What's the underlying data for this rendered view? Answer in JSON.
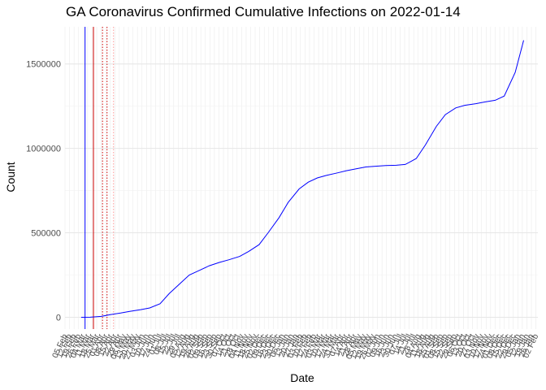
{
  "chart_data": {
    "type": "line",
    "title": "GA Coronavirus Confirmed Cumulative Infections on 2022-01-14",
    "xlabel": "Date",
    "ylabel": "Count",
    "x_type": "date",
    "xlim": [
      "2020-02-05",
      "2022-02-05"
    ],
    "ylim": [
      -70000,
      1720000
    ],
    "y_ticks": [
      0,
      500000,
      1000000,
      1500000
    ],
    "y_tick_labels": [
      "0",
      "500000",
      "1000000",
      "1500000"
    ],
    "grid": true,
    "series": [
      {
        "color": "#0000ff",
        "x": [
          "2020-03-01",
          "2020-03-15",
          "2020-04-01",
          "2020-04-15",
          "2020-05-01",
          "2020-05-15",
          "2020-06-01",
          "2020-06-15",
          "2020-07-01",
          "2020-07-15",
          "2020-08-01",
          "2020-08-15",
          "2020-09-01",
          "2020-09-15",
          "2020-10-01",
          "2020-10-15",
          "2020-11-01",
          "2020-11-15",
          "2020-12-01",
          "2020-12-15",
          "2021-01-01",
          "2021-01-15",
          "2021-02-01",
          "2021-02-15",
          "2021-03-01",
          "2021-03-15",
          "2021-04-01",
          "2021-04-15",
          "2021-05-01",
          "2021-05-15",
          "2021-06-01",
          "2021-06-15",
          "2021-07-01",
          "2021-07-15",
          "2021-08-01",
          "2021-08-15",
          "2021-09-01",
          "2021-09-15",
          "2021-10-01",
          "2021-10-15",
          "2021-11-01",
          "2021-11-15",
          "2021-12-01",
          "2021-12-15",
          "2022-01-01",
          "2022-01-14"
        ],
        "y": [
          0,
          200,
          5000,
          15000,
          25000,
          35000,
          45000,
          55000,
          80000,
          140000,
          200000,
          250000,
          280000,
          305000,
          325000,
          340000,
          360000,
          390000,
          430000,
          500000,
          590000,
          680000,
          760000,
          800000,
          825000,
          840000,
          855000,
          868000,
          880000,
          890000,
          895000,
          898000,
          900000,
          905000,
          940000,
          1020000,
          1130000,
          1200000,
          1240000,
          1255000,
          1265000,
          1275000,
          1285000,
          1310000,
          1450000,
          1640000
        ]
      }
    ],
    "vertical_lines": [
      {
        "x": "2020-03-07",
        "color": "#0000ff",
        "style": "solid"
      },
      {
        "x": "2020-03-20",
        "color": "#cc0000",
        "style": "solid"
      },
      {
        "x": "2020-04-03",
        "color": "#cc0000",
        "style": "dotted"
      },
      {
        "x": "2020-04-10",
        "color": "#cc0000",
        "style": "dotted"
      },
      {
        "x": "2020-04-20",
        "color": "#ff9999",
        "style": "dotted"
      }
    ],
    "x_tick_interval_days": 7
  }
}
